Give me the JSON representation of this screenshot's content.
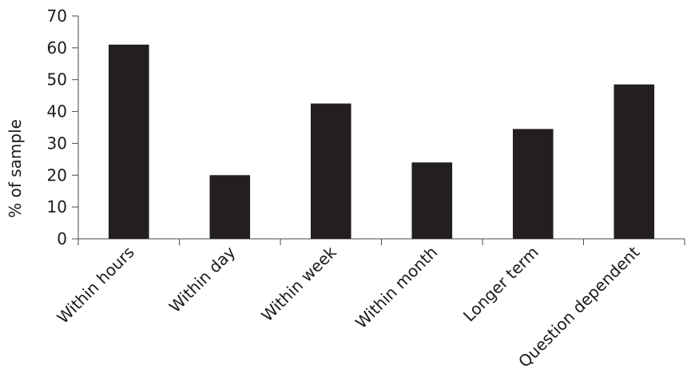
{
  "chart_data": {
    "type": "bar",
    "categories": [
      "Within hours",
      "Within day",
      "Within week",
      "Within month",
      "Longer term",
      "Question dependent"
    ],
    "values": [
      61,
      20,
      42.5,
      24,
      34.5,
      48.5
    ],
    "xlabel": "",
    "ylabel": "% of sample",
    "ylim": [
      0,
      70
    ],
    "yticks": [
      0,
      10,
      20,
      30,
      40,
      50,
      60,
      70
    ],
    "bar_color": "#231f20",
    "grid": false,
    "legend": "none"
  }
}
